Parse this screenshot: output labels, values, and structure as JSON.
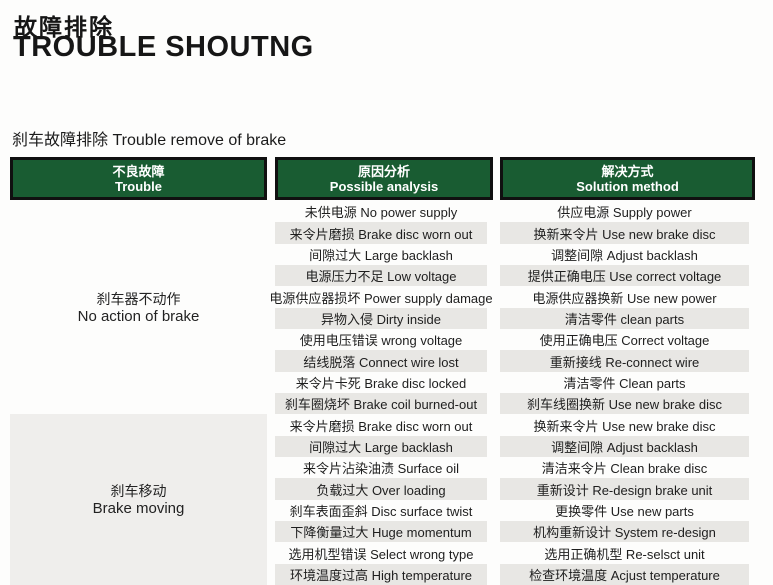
{
  "page": {
    "title_zh": "故障排除",
    "title_en": "TROUBLE SHOUTNG",
    "subtitle": "刹车故障排除 Trouble remove of brake"
  },
  "table": {
    "columns": [
      {
        "zh": "不良故障",
        "en": "Trouble"
      },
      {
        "zh": "原因分析",
        "en": "Possible analysis"
      },
      {
        "zh": "解决方式",
        "en": "Solution method"
      }
    ],
    "sections": [
      {
        "trouble_zh": "刹车器不动作",
        "trouble_en": "No action of brake",
        "rows": [
          {
            "analysis": "未供电源 No power supply",
            "solution": "供应电源 Supply power"
          },
          {
            "analysis": "来令片磨损 Brake disc worn out",
            "solution": "换新来令片 Use new brake disc"
          },
          {
            "analysis": "间隙过大 Large backlash",
            "solution": "调整间隙 Adjust backlash"
          },
          {
            "analysis": "电源压力不足 Low voltage",
            "solution": "提供正确电压 Use correct voltage"
          },
          {
            "analysis": "电源供应器损坏 Power supply damage",
            "solution": "电源供应器换新 Use new power"
          },
          {
            "analysis": "异物入侵 Dirty inside",
            "solution": "清洁零件 clean parts"
          },
          {
            "analysis": "使用电压错误 wrong voltage",
            "solution": "使用正确电压 Correct voltage"
          },
          {
            "analysis": "结线脱落 Connect wire lost",
            "solution": "重新接线 Re-connect wire"
          },
          {
            "analysis": "来令片卡死 Brake disc locked",
            "solution": "清洁零件 Clean parts"
          },
          {
            "analysis": "刹车圈烧坏 Brake coil burned-out",
            "solution": "刹车线圈换新 Use new brake disc"
          }
        ]
      },
      {
        "trouble_zh": "刹车移动",
        "trouble_en": "Brake moving",
        "rows": [
          {
            "analysis": "来令片磨损 Brake disc worn out",
            "solution": "换新来令片 Use new brake disc"
          },
          {
            "analysis": "间隙过大 Large backlash",
            "solution": "调整间隙 Adjust backlash"
          },
          {
            "analysis": "来令片沾染油渍 Surface oil",
            "solution": "清洁来令片 Clean brake disc"
          },
          {
            "analysis": "负载过大 Over loading",
            "solution": "重新设计 Re-design brake unit"
          },
          {
            "analysis": "刹车表面歪斜 Disc surface twist",
            "solution": "更换零件 Use new parts"
          },
          {
            "analysis": "下降衡量过大 Huge momentum",
            "solution": "机构重新设计 System re-design"
          },
          {
            "analysis": "选用机型错误 Select wrong type",
            "solution": "选用正确机型 Re-selsct unit"
          },
          {
            "analysis": "环境温度过高 High temperature",
            "solution": "检查环境温度 Acjust temperature"
          }
        ]
      }
    ]
  },
  "colors": {
    "header_green": "#195c32",
    "header_text": "#ffffff",
    "row_alt_gray": "#e8e7e4",
    "section2_bg": "#efeeec",
    "ink": "#1e1e1e"
  }
}
